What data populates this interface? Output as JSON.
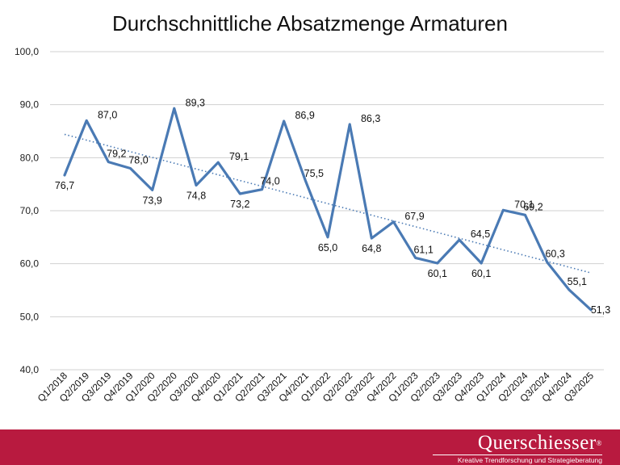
{
  "chart_data": {
    "type": "line",
    "title": "Durchschnittliche Absatzmenge Armaturen",
    "xlabel": "",
    "ylabel": "",
    "ylim": [
      40,
      100
    ],
    "yticks": [
      "40,0",
      "50,0",
      "60,0",
      "70,0",
      "80,0",
      "90,0",
      "100,0"
    ],
    "grid": true,
    "legend": "none",
    "line_color": "#4a7ab4",
    "trend_color": "#4a7ab4",
    "categories": [
      "Q1/2018",
      "Q2/2019",
      "Q3/2019",
      "Q4/2019",
      "Q1/2020",
      "Q2/2020",
      "Q3/2020",
      "Q4/2020",
      "Q1/2021",
      "Q2/2021",
      "Q3/2021",
      "Q4/2021",
      "Q1/2022",
      "Q2/2022",
      "Q3/2022",
      "Q4/2022",
      "Q1/2023",
      "Q2/2023",
      "Q3/2023",
      "Q4/2023",
      "Q1/2024",
      "Q2/2024",
      "Q3/2024",
      "Q4/2024",
      "Q3/2025"
    ],
    "values": [
      76.7,
      87.0,
      79.2,
      78.0,
      73.9,
      89.3,
      74.8,
      79.1,
      73.2,
      74.0,
      86.9,
      75.5,
      65.0,
      86.3,
      64.8,
      67.9,
      61.1,
      60.1,
      64.5,
      60.1,
      70.1,
      69.2,
      60.3,
      55.1,
      51.3
    ],
    "data_labels": [
      "76,7",
      "87,0",
      "79,2",
      "78,0",
      "73,9",
      "89,3",
      "74,8",
      "79,1",
      "73,2",
      "74,0",
      "86,9",
      "75,5",
      "65,0",
      "86,3",
      "64,8",
      "67,9",
      "61,1",
      "60,1",
      "64,5",
      "60,1",
      "70,1",
      "69,2",
      "60,3",
      "55,1",
      "51,3"
    ],
    "trendline": {
      "type": "linear",
      "style": "dotted"
    }
  },
  "footer": {
    "brand": "Querschiesser",
    "registered_mark": "®",
    "tagline": "Kreative Trendforschung und Strategieberatung",
    "band_color": "#b81a3f"
  }
}
